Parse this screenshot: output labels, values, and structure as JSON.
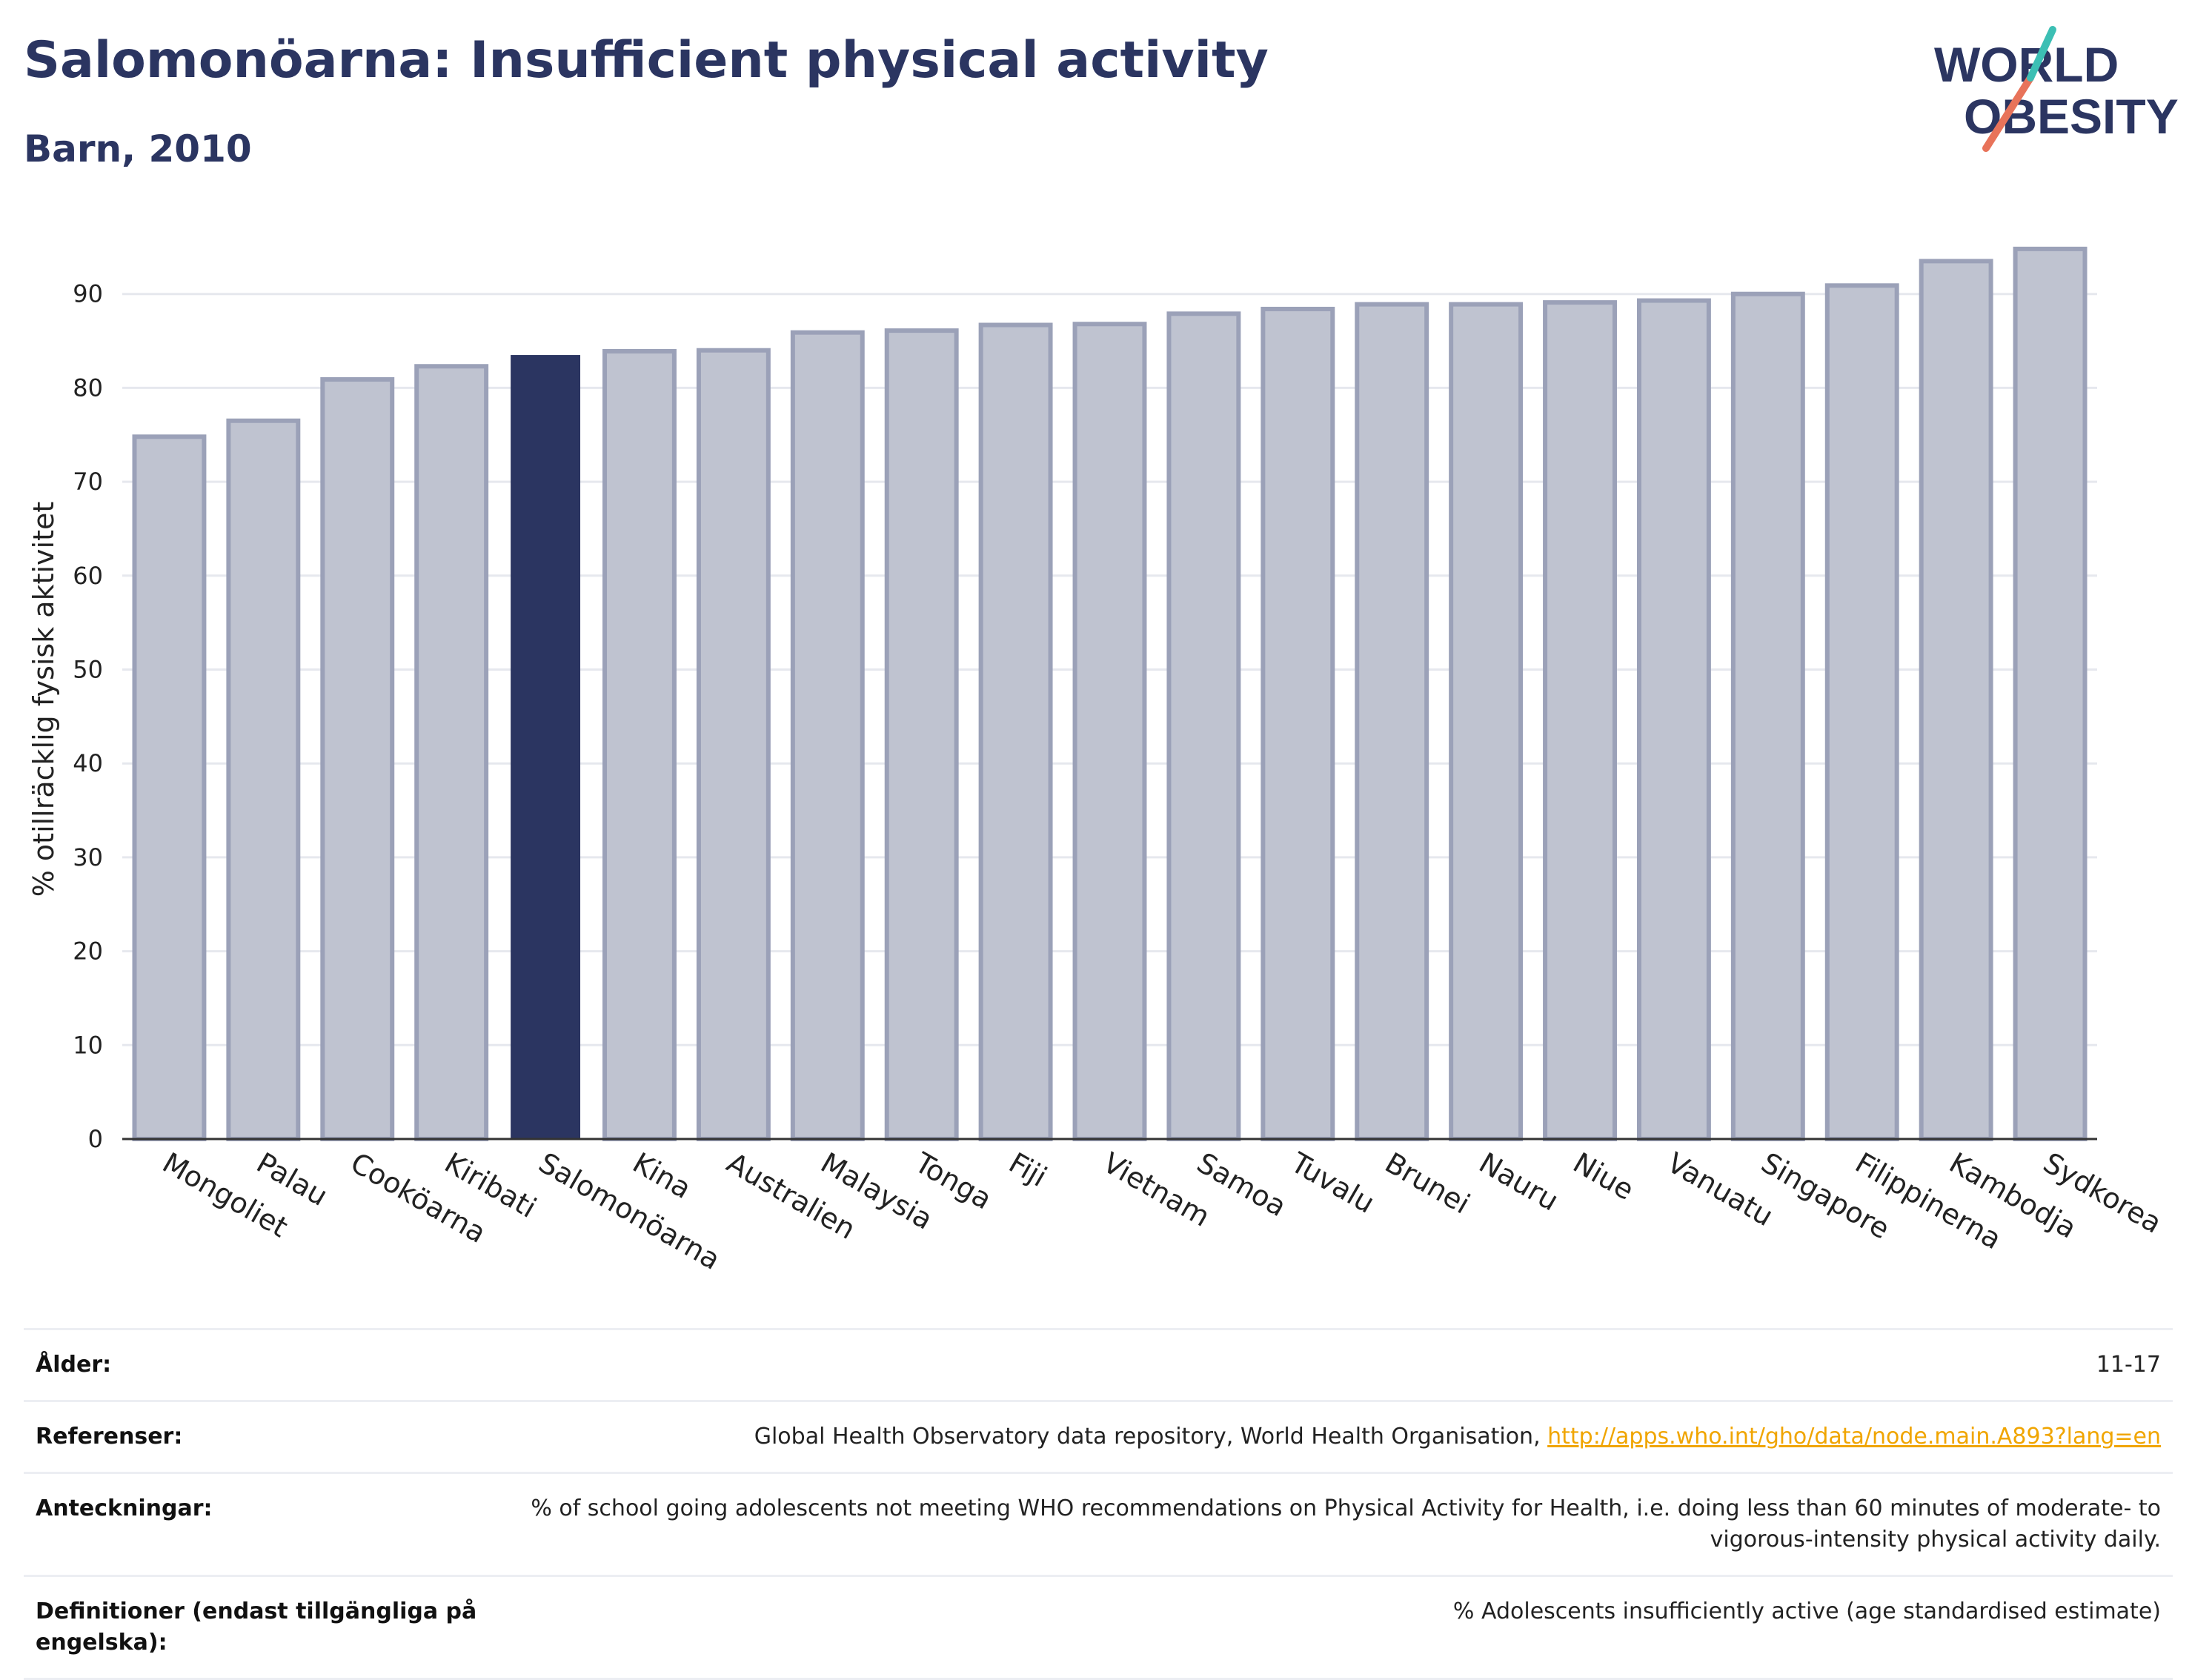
{
  "header": {
    "title": "Salomonöarna: Insufficient physical activity",
    "subtitle": "Barn, 2010"
  },
  "logo": {
    "line1": "WORLD",
    "line2": "OBESITY"
  },
  "colors": {
    "bar": "#bfc3d0",
    "bar_edge": "#9ba1b8",
    "highlight": "#2b3561",
    "title": "#2b3561",
    "link": "#f0a500"
  },
  "chart_data": {
    "type": "bar",
    "categories": [
      "Mongoliet",
      "Palau",
      "Cooköarna",
      "Kiribati",
      "Salomonöarna",
      "Kina",
      "Australien",
      "Malaysia",
      "Tonga",
      "Fiji",
      "Vietnam",
      "Samoa",
      "Tuvalu",
      "Brunei",
      "Nauru",
      "Niue",
      "Vanuatu",
      "Singapore",
      "Filippinerna",
      "Kambodja",
      "Sydkorea"
    ],
    "values": [
      74.8,
      76.5,
      80.9,
      82.3,
      83.5,
      83.9,
      84.0,
      85.9,
      86.1,
      86.7,
      86.8,
      87.9,
      88.4,
      88.9,
      88.9,
      89.1,
      89.3,
      90.0,
      90.9,
      93.5,
      94.8
    ],
    "highlight": "Salomonöarna",
    "ylabel": "% otillräcklig fysisk aktivitet",
    "xlabel": "",
    "ylim": [
      0,
      100
    ],
    "yticks": [
      0,
      10,
      20,
      30,
      40,
      50,
      60,
      70,
      80,
      90
    ],
    "grid": true
  },
  "meta": {
    "age_label": "Ålder:",
    "age_value": "11-17",
    "refs_label": "Referenser:",
    "refs_text": "Global Health Observatory data repository, World Health Organisation, ",
    "refs_link": "http://apps.who.int/gho/data/node.main.A893?lang=en",
    "notes_label": "Anteckningar:",
    "notes_value": "% of school going adolescents not meeting WHO recommendations on Physical Activity for Health, i.e. doing less than 60 minutes of moderate- to vigorous-intensity physical activity daily.",
    "defs_label": "Definitioner (endast tillgängliga på engelska):",
    "defs_value": "% Adolescents insufficiently active (age standardised estimate)"
  }
}
